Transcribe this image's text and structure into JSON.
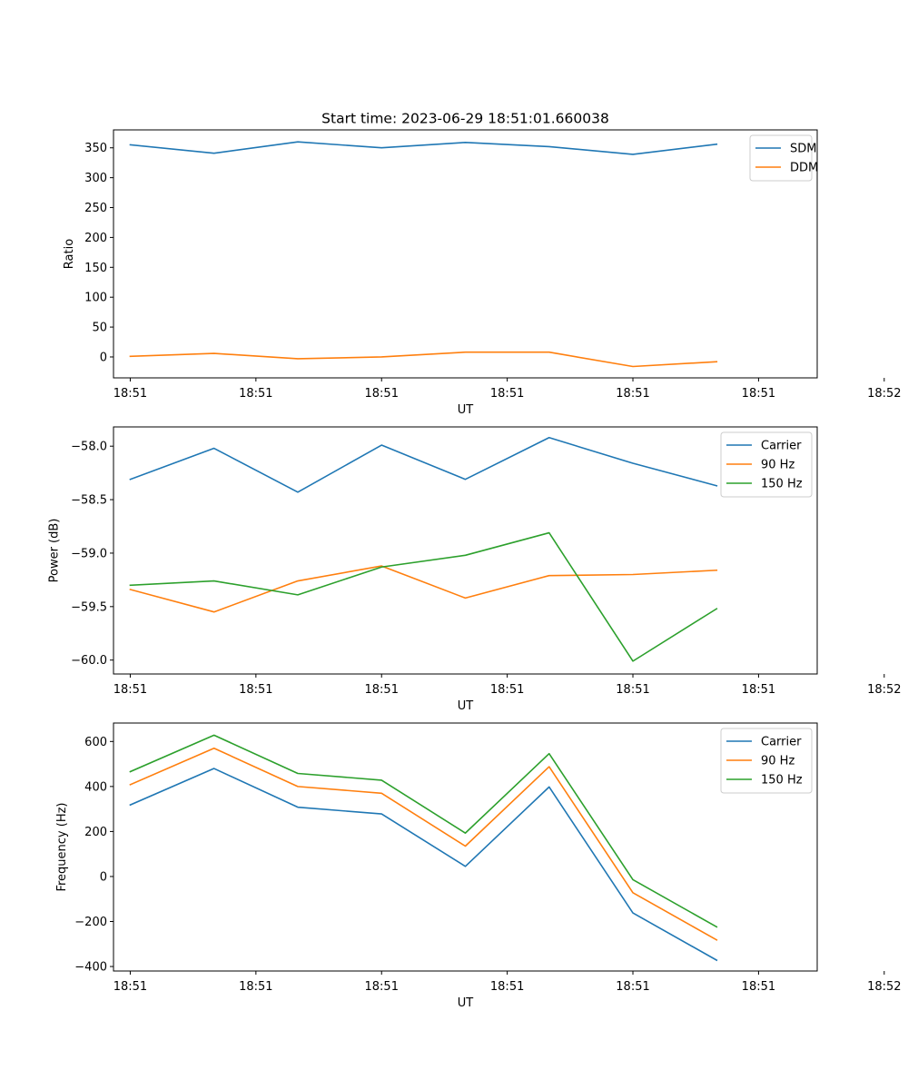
{
  "figure": {
    "title": "Start time: 2023-06-29 18:51:01.660038"
  },
  "colors": {
    "c0": "#1f77b4",
    "c1": "#ff7f0e",
    "c2": "#2ca02c"
  },
  "chart_data": [
    {
      "type": "line",
      "title": "",
      "xlabel": "UT",
      "ylabel": "Ratio",
      "x": [
        1,
        2,
        3,
        4,
        5,
        6,
        7,
        8
      ],
      "xlim": [
        0.8,
        9.2
      ],
      "xticks": [
        1,
        2.5,
        4,
        5.5,
        7,
        8.5,
        10
      ],
      "xtick_labels": [
        "18:51",
        "18:51",
        "18:51",
        "18:51",
        "18:51",
        "18:51",
        "18:52"
      ],
      "ylim": [
        -35,
        380
      ],
      "yticks": [
        0,
        50,
        100,
        150,
        200,
        250,
        300,
        350
      ],
      "ytick_labels": [
        "0",
        "50",
        "100",
        "150",
        "200",
        "250",
        "300",
        "350"
      ],
      "legend": "top-right",
      "series": [
        {
          "name": "SDM",
          "color": "#1f77b4",
          "values": [
            355,
            341,
            360,
            350,
            359,
            352,
            339,
            356
          ]
        },
        {
          "name": "DDM",
          "color": "#ff7f0e",
          "values": [
            1,
            6,
            -3,
            0,
            8,
            8,
            -16,
            -8
          ]
        }
      ]
    },
    {
      "type": "line",
      "title": "",
      "xlabel": "UT",
      "ylabel": "Power (dB)",
      "x": [
        1,
        2,
        3,
        4,
        5,
        6,
        7,
        8
      ],
      "xlim": [
        0.8,
        9.2
      ],
      "xticks": [
        1,
        2.5,
        4,
        5.5,
        7,
        8.5,
        10
      ],
      "xtick_labels": [
        "18:51",
        "18:51",
        "18:51",
        "18:51",
        "18:51",
        "18:51",
        "18:52"
      ],
      "ylim": [
        -60.13,
        -57.82
      ],
      "yticks": [
        -58.0,
        -58.5,
        -59.0,
        -59.5,
        -60.0
      ],
      "ytick_labels": [
        "−58.0",
        "−58.5",
        "−59.0",
        "−59.5",
        "−60.0"
      ],
      "legend": "top-right",
      "series": [
        {
          "name": "Carrier",
          "color": "#1f77b4",
          "values": [
            -58.31,
            -58.02,
            -58.43,
            -57.99,
            -58.31,
            -57.92,
            -58.16,
            -58.37
          ]
        },
        {
          "name": "90 Hz",
          "color": "#ff7f0e",
          "values": [
            -59.34,
            -59.55,
            -59.26,
            -59.12,
            -59.42,
            -59.21,
            -59.2,
            -59.16
          ]
        },
        {
          "name": "150 Hz",
          "color": "#2ca02c",
          "values": [
            -59.3,
            -59.26,
            -59.39,
            -59.13,
            -59.02,
            -58.81,
            -60.01,
            -59.52
          ]
        }
      ]
    },
    {
      "type": "line",
      "title": "",
      "xlabel": "UT",
      "ylabel": "Frequency (Hz)",
      "x": [
        1,
        2,
        3,
        4,
        5,
        6,
        7,
        8
      ],
      "xlim": [
        0.8,
        9.2
      ],
      "xticks": [
        1,
        2.5,
        4,
        5.5,
        7,
        8.5,
        10
      ],
      "xtick_labels": [
        "18:51",
        "18:51",
        "18:51",
        "18:51",
        "18:51",
        "18:51",
        "18:52"
      ],
      "ylim": [
        -420,
        682
      ],
      "yticks": [
        600,
        400,
        200,
        0,
        -200,
        -400
      ],
      "ytick_labels": [
        "600",
        "400",
        "200",
        "0",
        "−200",
        "−400"
      ],
      "legend": "top-right",
      "series": [
        {
          "name": "Carrier",
          "color": "#1f77b4",
          "values": [
            318,
            480,
            308,
            278,
            45,
            398,
            -162,
            -372
          ]
        },
        {
          "name": "90 Hz",
          "color": "#ff7f0e",
          "values": [
            408,
            570,
            400,
            370,
            135,
            488,
            -72,
            -282
          ]
        },
        {
          "name": "150 Hz",
          "color": "#2ca02c",
          "values": [
            466,
            628,
            458,
            428,
            193,
            546,
            -14,
            -224
          ]
        }
      ]
    }
  ]
}
